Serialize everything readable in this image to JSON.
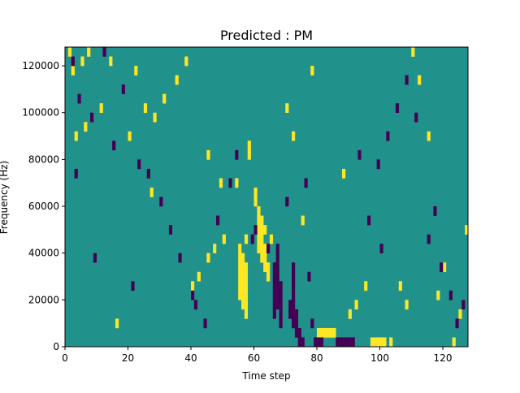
{
  "chart_data": {
    "type": "heatmap",
    "title": "Predicted : PM",
    "xlabel": "Time step",
    "ylabel": "Frequency (Hz)",
    "xlim": [
      0,
      128
    ],
    "ylim": [
      0,
      128000
    ],
    "x_ticks": [
      0,
      20,
      40,
      60,
      80,
      100,
      120
    ],
    "x_tick_labels": [
      "0",
      "20",
      "40",
      "60",
      "80",
      "100",
      "120"
    ],
    "y_ticks": [
      0,
      20000,
      40000,
      60000,
      80000,
      100000,
      120000
    ],
    "y_tick_labels": [
      "0",
      "20000",
      "40000",
      "60000",
      "80000",
      "100000",
      "120000"
    ],
    "n_time_steps": 128,
    "n_freq_bins": 32,
    "bin_height_hz": 4000,
    "background_value": 0,
    "colormap": {
      "-1": "#440154",
      "0": "#21918c",
      "1": "#fde725"
    },
    "cells_positive": [
      [
        1,
        31
      ],
      [
        2,
        29
      ],
      [
        3,
        22
      ],
      [
        5,
        30
      ],
      [
        7,
        31
      ],
      [
        11,
        25
      ],
      [
        14,
        30
      ],
      [
        20,
        22
      ],
      [
        22,
        29
      ],
      [
        25,
        25
      ],
      [
        28,
        24
      ],
      [
        31,
        26
      ],
      [
        35,
        28
      ],
      [
        38,
        30
      ],
      [
        40,
        6
      ],
      [
        42,
        7
      ],
      [
        45,
        9
      ],
      [
        47,
        10
      ],
      [
        50,
        11
      ],
      [
        54,
        17
      ],
      [
        55,
        5
      ],
      [
        55,
        6
      ],
      [
        55,
        7
      ],
      [
        55,
        8
      ],
      [
        55,
        9
      ],
      [
        55,
        10
      ],
      [
        56,
        4
      ],
      [
        56,
        5
      ],
      [
        56,
        6
      ],
      [
        56,
        7
      ],
      [
        56,
        8
      ],
      [
        56,
        9
      ],
      [
        57,
        3
      ],
      [
        57,
        4
      ],
      [
        57,
        5
      ],
      [
        57,
        6
      ],
      [
        57,
        7
      ],
      [
        57,
        8
      ],
      [
        57,
        11
      ],
      [
        58,
        20
      ],
      [
        58,
        21
      ],
      [
        60,
        15
      ],
      [
        60,
        16
      ],
      [
        61,
        10
      ],
      [
        61,
        11
      ],
      [
        61,
        12
      ],
      [
        61,
        13
      ],
      [
        61,
        14
      ],
      [
        62,
        9
      ],
      [
        62,
        10
      ],
      [
        62,
        11
      ],
      [
        62,
        12
      ],
      [
        62,
        13
      ],
      [
        63,
        8
      ],
      [
        63,
        9
      ],
      [
        63,
        10
      ],
      [
        63,
        12
      ],
      [
        64,
        7
      ],
      [
        64,
        8
      ],
      [
        65,
        11
      ],
      [
        70,
        25
      ],
      [
        72,
        22
      ],
      [
        75,
        13
      ],
      [
        78,
        29
      ],
      [
        80,
        1
      ],
      [
        81,
        1
      ],
      [
        82,
        1
      ],
      [
        83,
        1
      ],
      [
        84,
        1
      ],
      [
        85,
        1
      ],
      [
        90,
        3
      ],
      [
        92,
        4
      ],
      [
        95,
        6
      ],
      [
        97,
        0
      ],
      [
        98,
        0
      ],
      [
        99,
        0
      ],
      [
        100,
        0
      ],
      [
        101,
        0
      ],
      [
        103,
        0
      ],
      [
        106,
        6
      ],
      [
        108,
        4
      ],
      [
        110,
        31
      ],
      [
        112,
        28
      ],
      [
        118,
        5
      ],
      [
        120,
        8
      ],
      [
        123,
        0
      ],
      [
        125,
        3
      ],
      [
        127,
        12
      ],
      [
        49,
        17
      ],
      [
        6,
        23
      ],
      [
        16,
        2
      ],
      [
        27,
        16
      ],
      [
        45,
        20
      ],
      [
        88,
        18
      ],
      [
        115,
        22
      ]
    ],
    "cells_negative": [
      [
        2,
        30
      ],
      [
        4,
        26
      ],
      [
        8,
        24
      ],
      [
        12,
        31
      ],
      [
        15,
        21
      ],
      [
        18,
        27
      ],
      [
        23,
        19
      ],
      [
        26,
        18
      ],
      [
        30,
        15
      ],
      [
        33,
        12
      ],
      [
        36,
        9
      ],
      [
        40,
        5
      ],
      [
        41,
        4
      ],
      [
        44,
        2
      ],
      [
        48,
        13
      ],
      [
        52,
        17
      ],
      [
        54,
        20
      ],
      [
        59,
        11
      ],
      [
        60,
        12
      ],
      [
        64,
        10
      ],
      [
        66,
        3
      ],
      [
        66,
        4
      ],
      [
        66,
        5
      ],
      [
        66,
        6
      ],
      [
        66,
        7
      ],
      [
        66,
        8
      ],
      [
        67,
        4
      ],
      [
        67,
        5
      ],
      [
        67,
        6
      ],
      [
        67,
        7
      ],
      [
        67,
        8
      ],
      [
        67,
        9
      ],
      [
        67,
        10
      ],
      [
        68,
        2
      ],
      [
        68,
        3
      ],
      [
        68,
        4
      ],
      [
        68,
        5
      ],
      [
        68,
        6
      ],
      [
        71,
        3
      ],
      [
        71,
        4
      ],
      [
        72,
        2
      ],
      [
        72,
        3
      ],
      [
        72,
        4
      ],
      [
        72,
        5
      ],
      [
        72,
        6
      ],
      [
        72,
        7
      ],
      [
        72,
        8
      ],
      [
        73,
        1
      ],
      [
        73,
        2
      ],
      [
        73,
        3
      ],
      [
        74,
        0
      ],
      [
        74,
        1
      ],
      [
        75,
        0
      ],
      [
        77,
        7
      ],
      [
        78,
        2
      ],
      [
        79,
        0
      ],
      [
        80,
        0
      ],
      [
        81,
        0
      ],
      [
        86,
        0
      ],
      [
        87,
        0
      ],
      [
        88,
        0
      ],
      [
        89,
        0
      ],
      [
        90,
        0
      ],
      [
        91,
        0
      ],
      [
        96,
        13
      ],
      [
        99,
        19
      ],
      [
        102,
        22
      ],
      [
        105,
        25
      ],
      [
        108,
        28
      ],
      [
        111,
        24
      ],
      [
        115,
        11
      ],
      [
        119,
        8
      ],
      [
        122,
        5
      ],
      [
        124,
        2
      ],
      [
        126,
        4
      ],
      [
        70,
        15
      ],
      [
        76,
        17
      ],
      [
        93,
        20
      ],
      [
        100,
        10
      ],
      [
        117,
        14
      ],
      [
        3,
        18
      ],
      [
        9,
        9
      ],
      [
        21,
        6
      ]
    ]
  }
}
